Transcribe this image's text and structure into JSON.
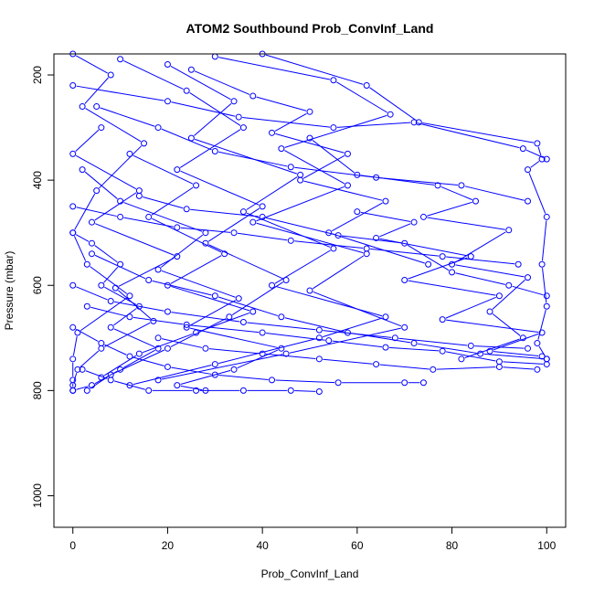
{
  "chart_data": {
    "type": "scatter",
    "title": "ATOM2 Southbound Prob_ConvInf_Land",
    "xlabel": "Prob_ConvInf_Land",
    "ylabel": "Pressure (mbar)",
    "xlim": [
      -4,
      104
    ],
    "ylim": [
      1060,
      160
    ],
    "y_reversed": true,
    "x_ticks": [
      0,
      20,
      40,
      60,
      80,
      100
    ],
    "y_ticks": [
      200,
      400,
      600,
      800,
      1000
    ],
    "x_tick_labels": [
      "0",
      "20",
      "40",
      "60",
      "80",
      "100"
    ],
    "y_tick_labels": [
      "200",
      "400",
      "600",
      "800",
      "1000"
    ],
    "grid": false,
    "point_style": "open-circle",
    "connected_by_lines": true,
    "colors": {
      "series": "#0000ff",
      "axis": "#000000",
      "background": "#ffffff"
    },
    "series": [
      {
        "values": [
          [
            0,
            160
          ],
          [
            8,
            200
          ],
          [
            2,
            260
          ],
          [
            15,
            330
          ],
          [
            5,
            420
          ],
          [
            0,
            500
          ],
          [
            3,
            560
          ],
          [
            12,
            620
          ],
          [
            1,
            690
          ],
          [
            0,
            740
          ],
          [
            0,
            780
          ],
          [
            0,
            800
          ]
        ]
      },
      {
        "values": [
          [
            10,
            170
          ],
          [
            24,
            230
          ],
          [
            36,
            300
          ],
          [
            22,
            380
          ],
          [
            40,
            450
          ],
          [
            28,
            520
          ],
          [
            45,
            590
          ],
          [
            33,
            660
          ],
          [
            20,
            720
          ],
          [
            8,
            770
          ],
          [
            3,
            800
          ]
        ]
      },
      {
        "values": [
          [
            30,
            165
          ],
          [
            55,
            210
          ],
          [
            67,
            275
          ],
          [
            44,
            340
          ],
          [
            58,
            410
          ],
          [
            38,
            480
          ],
          [
            62,
            540
          ],
          [
            50,
            610
          ],
          [
            70,
            680
          ],
          [
            45,
            730
          ],
          [
            18,
            780
          ]
        ]
      },
      {
        "values": [
          [
            20,
            180
          ],
          [
            34,
            250
          ],
          [
            25,
            320
          ],
          [
            48,
            390
          ],
          [
            36,
            460
          ],
          [
            55,
            530
          ],
          [
            42,
            600
          ],
          [
            66,
            660
          ],
          [
            52,
            700
          ],
          [
            30,
            750
          ],
          [
            12,
            790
          ]
        ]
      },
      {
        "values": [
          [
            40,
            160
          ],
          [
            62,
            220
          ],
          [
            73,
            290
          ],
          [
            98,
            330
          ],
          [
            99,
            360
          ],
          [
            96,
            380
          ],
          [
            100,
            470
          ],
          [
            99,
            560
          ],
          [
            100,
            640
          ],
          [
            98,
            710
          ],
          [
            100,
            740
          ]
        ]
      },
      {
        "values": [
          [
            6,
            300
          ],
          [
            0,
            350
          ],
          [
            14,
            420
          ],
          [
            4,
            480
          ],
          [
            22,
            545
          ],
          [
            9,
            605
          ],
          [
            17,
            668
          ],
          [
            6,
            720
          ],
          [
            1,
            760
          ],
          [
            0,
            790
          ]
        ]
      },
      {
        "values": [
          [
            50,
            320
          ],
          [
            60,
            390
          ],
          [
            77,
            410
          ],
          [
            85,
            440
          ],
          [
            74,
            470
          ],
          [
            92,
            495
          ],
          [
            80,
            560
          ],
          [
            96,
            585
          ],
          [
            88,
            650
          ],
          [
            95,
            700
          ],
          [
            82,
            740
          ]
        ]
      },
      {
        "values": [
          [
            12,
            350
          ],
          [
            26,
            410
          ],
          [
            16,
            470
          ],
          [
            32,
            540
          ],
          [
            20,
            600
          ],
          [
            38,
            650
          ],
          [
            26,
            690
          ],
          [
            14,
            730
          ],
          [
            6,
            775
          ]
        ]
      },
      {
        "values": [
          [
            2,
            380
          ],
          [
            10,
            440
          ],
          [
            28,
            500
          ],
          [
            18,
            570
          ],
          [
            35,
            625
          ],
          [
            24,
            680
          ],
          [
            44,
            720
          ],
          [
            34,
            760
          ],
          [
            22,
            790
          ],
          [
            28,
            800
          ]
        ]
      },
      {
        "values": [
          [
            60,
            460
          ],
          [
            72,
            480
          ],
          [
            64,
            510
          ],
          [
            84,
            545
          ],
          [
            70,
            590
          ],
          [
            90,
            620
          ],
          [
            78,
            665
          ],
          [
            99,
            690
          ],
          [
            88,
            725
          ],
          [
            99,
            735
          ]
        ]
      },
      {
        "values": [
          [
            4,
            540
          ],
          [
            16,
            590
          ],
          [
            30,
            620
          ],
          [
            44,
            660
          ],
          [
            58,
            690
          ],
          [
            72,
            710
          ],
          [
            86,
            730
          ],
          [
            100,
            740
          ]
        ]
      },
      {
        "values": [
          [
            0,
            600
          ],
          [
            8,
            630
          ],
          [
            20,
            650
          ],
          [
            36,
            670
          ],
          [
            52,
            685
          ],
          [
            68,
            700
          ],
          [
            84,
            715
          ],
          [
            96,
            720
          ]
        ]
      },
      {
        "values": [
          [
            18,
            700
          ],
          [
            28,
            720
          ],
          [
            40,
            730
          ],
          [
            52,
            740
          ],
          [
            64,
            750
          ],
          [
            76,
            760
          ],
          [
            90,
            755
          ],
          [
            98,
            760
          ]
        ]
      },
      {
        "values": [
          [
            0,
            680
          ],
          [
            6,
            710
          ],
          [
            12,
            735
          ],
          [
            20,
            755
          ],
          [
            30,
            770
          ],
          [
            42,
            780
          ],
          [
            56,
            785
          ],
          [
            70,
            785
          ],
          [
            74,
            785
          ]
        ]
      },
      {
        "values": [
          [
            2,
            760
          ],
          [
            8,
            780
          ],
          [
            16,
            800
          ],
          [
            26,
            800
          ],
          [
            36,
            800
          ],
          [
            46,
            800
          ],
          [
            52,
            802
          ]
        ]
      },
      {
        "values": [
          [
            0,
            220
          ],
          [
            20,
            250
          ],
          [
            35,
            280
          ],
          [
            55,
            300
          ],
          [
            72,
            290
          ],
          [
            95,
            340
          ],
          [
            100,
            360
          ]
        ]
      },
      {
        "values": [
          [
            5,
            260
          ],
          [
            18,
            300
          ],
          [
            30,
            345
          ],
          [
            46,
            375
          ],
          [
            64,
            395
          ],
          [
            82,
            410
          ],
          [
            96,
            440
          ]
        ]
      },
      {
        "values": [
          [
            25,
            190
          ],
          [
            38,
            240
          ],
          [
            50,
            270
          ],
          [
            42,
            310
          ],
          [
            58,
            350
          ],
          [
            48,
            400
          ],
          [
            66,
            440
          ],
          [
            54,
            500
          ],
          [
            75,
            560
          ]
        ]
      },
      {
        "values": [
          [
            14,
            430
          ],
          [
            24,
            455
          ],
          [
            40,
            470
          ],
          [
            56,
            505
          ],
          [
            70,
            520
          ],
          [
            80,
            575
          ],
          [
            92,
            600
          ],
          [
            100,
            620
          ]
        ]
      },
      {
        "values": [
          [
            0,
            450
          ],
          [
            10,
            470
          ],
          [
            22,
            490
          ],
          [
            34,
            500
          ],
          [
            46,
            515
          ],
          [
            62,
            530
          ],
          [
            78,
            545
          ],
          [
            94,
            560
          ]
        ]
      },
      {
        "values": [
          [
            3,
            640
          ],
          [
            12,
            660
          ],
          [
            24,
            675
          ],
          [
            40,
            690
          ],
          [
            54,
            705
          ],
          [
            66,
            718
          ],
          [
            78,
            725
          ],
          [
            90,
            745
          ],
          [
            100,
            750
          ]
        ]
      },
      {
        "values": [
          [
            0,
            500
          ],
          [
            4,
            520
          ],
          [
            10,
            560
          ],
          [
            6,
            600
          ],
          [
            14,
            640
          ],
          [
            8,
            680
          ],
          [
            18,
            720
          ],
          [
            10,
            760
          ],
          [
            4,
            790
          ],
          [
            0,
            800
          ]
        ]
      }
    ]
  }
}
